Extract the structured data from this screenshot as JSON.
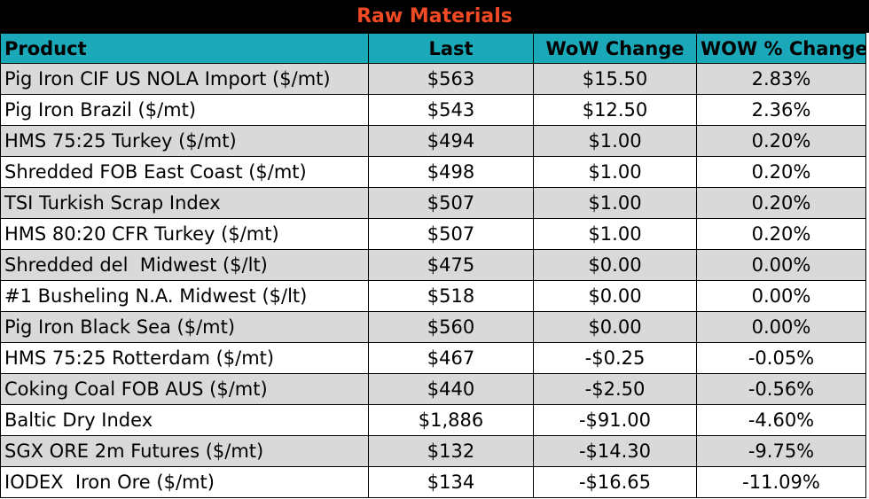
{
  "title": "Raw Materials",
  "headers": {
    "product": "Product",
    "last": "Last",
    "wow_change": "WoW Change",
    "wow_pct_change": "WOW % Change"
  },
  "rows": [
    {
      "product": "Pig Iron CIF US NOLA Import ($/mt)",
      "last": "$563",
      "wow_change": "$15.50",
      "wow_pct_change": "2.83%"
    },
    {
      "product": "Pig Iron Brazil ($/mt)",
      "last": "$543",
      "wow_change": "$12.50",
      "wow_pct_change": "2.36%"
    },
    {
      "product": "HMS 75:25 Turkey ($/mt)",
      "last": "$494",
      "wow_change": "$1.00",
      "wow_pct_change": "0.20%"
    },
    {
      "product": "Shredded FOB East Coast ($/mt)",
      "last": "$498",
      "wow_change": "$1.00",
      "wow_pct_change": "0.20%"
    },
    {
      "product": "TSI Turkish Scrap Index",
      "last": "$507",
      "wow_change": "$1.00",
      "wow_pct_change": "0.20%"
    },
    {
      "product": "HMS 80:20 CFR Turkey ($/mt)",
      "last": "$507",
      "wow_change": "$1.00",
      "wow_pct_change": "0.20%"
    },
    {
      "product": "Shredded del  Midwest ($/lt)",
      "last": "$475",
      "wow_change": "$0.00",
      "wow_pct_change": "0.00%"
    },
    {
      "product": "#1 Busheling N.A. Midwest ($/lt)",
      "last": "$518",
      "wow_change": "$0.00",
      "wow_pct_change": "0.00%"
    },
    {
      "product": "Pig Iron Black Sea ($/mt)",
      "last": "$560",
      "wow_change": "$0.00",
      "wow_pct_change": "0.00%"
    },
    {
      "product": "HMS 75:25 Rotterdam ($/mt)",
      "last": "$467",
      "wow_change": "-$0.25",
      "wow_pct_change": "-0.05%"
    },
    {
      "product": "Coking Coal FOB AUS ($/mt)",
      "last": "$440",
      "wow_change": "-$2.50",
      "wow_pct_change": "-0.56%"
    },
    {
      "product": "Baltic Dry Index",
      "last": "$1,886",
      "wow_change": "-$91.00",
      "wow_pct_change": "-4.60%"
    },
    {
      "product": "SGX ORE 2m Futures ($/mt)",
      "last": "$132",
      "wow_change": "-$14.30",
      "wow_pct_change": "-9.75%"
    },
    {
      "product": "IODEX  Iron Ore ($/mt)",
      "last": "$134",
      "wow_change": "-$16.65",
      "wow_pct_change": "-11.09%"
    }
  ],
  "colors": {
    "title_background": "#000000",
    "title_text": "#f04a24",
    "header_background": "#1ba8b9",
    "shaded_row": "#d9d9d9",
    "plain_row": "#ffffff"
  }
}
